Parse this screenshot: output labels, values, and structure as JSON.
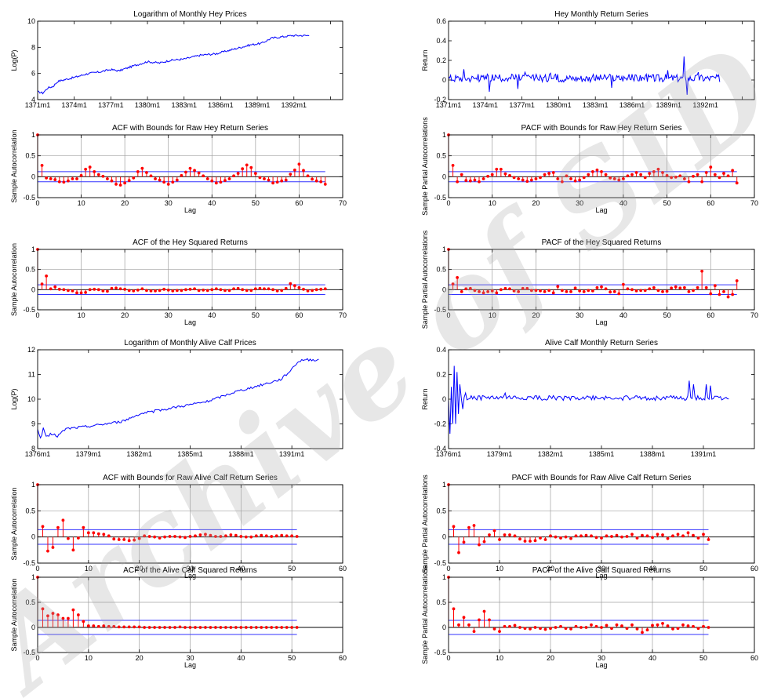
{
  "watermark": {
    "text": "Archive of SID"
  },
  "colors": {
    "line": "#0000ff",
    "stem": "#ff0000",
    "bound": "#3333ff",
    "axis": "#000000",
    "grid": "#a0a0a0"
  },
  "chart_data": [
    {
      "id": "hey-log-prices",
      "type": "line",
      "title": "Logarithm of Monthly Hey Prices",
      "ylabel": "Log(P)",
      "xlabel": "",
      "xlim": [
        0,
        300
      ],
      "ylim": [
        4,
        10
      ],
      "yticks": [
        4,
        6,
        8,
        10
      ],
      "xticks": [
        {
          "x": 0,
          "label": "1371m1"
        },
        {
          "x": 36,
          "label": "1374m1"
        },
        {
          "x": 72,
          "label": "1377m1"
        },
        {
          "x": 108,
          "label": "1380m1"
        },
        {
          "x": 144,
          "label": "1383m1"
        },
        {
          "x": 180,
          "label": "1386m1"
        },
        {
          "x": 216,
          "label": "1389m1"
        },
        {
          "x": 252,
          "label": "1392m1"
        },
        {
          "x": 288,
          "label": ""
        }
      ],
      "grid": false,
      "n": 268,
      "anchors": [
        [
          0,
          4.6
        ],
        [
          5,
          4.5
        ],
        [
          10,
          4.9
        ],
        [
          15,
          5.0
        ],
        [
          20,
          5.4
        ],
        [
          36,
          5.7
        ],
        [
          50,
          6.0
        ],
        [
          60,
          6.1
        ],
        [
          72,
          6.3
        ],
        [
          80,
          6.2
        ],
        [
          95,
          6.6
        ],
        [
          108,
          6.9
        ],
        [
          120,
          6.8
        ],
        [
          130,
          7.0
        ],
        [
          144,
          7.1
        ],
        [
          160,
          7.4
        ],
        [
          175,
          7.5
        ],
        [
          180,
          7.6
        ],
        [
          195,
          7.9
        ],
        [
          210,
          8.2
        ],
        [
          220,
          8.3
        ],
        [
          230,
          8.7
        ],
        [
          240,
          8.8
        ],
        [
          250,
          8.9
        ]
      ]
    },
    {
      "id": "hey-returns",
      "type": "line",
      "title": "Hey Monthly Return Series",
      "ylabel": "Return",
      "xlabel": "",
      "xlim": [
        0,
        300
      ],
      "ylim": [
        -0.2,
        0.6
      ],
      "yticks": [
        -0.2,
        0,
        0.2,
        0.4,
        0.6
      ],
      "xticks": [
        {
          "x": 0,
          "label": "1371m1"
        },
        {
          "x": 36,
          "label": "1374m1"
        },
        {
          "x": 72,
          "label": "1377m1"
        },
        {
          "x": 108,
          "label": "1380m1"
        },
        {
          "x": 144,
          "label": "1383m1"
        },
        {
          "x": 180,
          "label": "1386m1"
        },
        {
          "x": 216,
          "label": "1389m1"
        },
        {
          "x": 252,
          "label": "1392m1"
        },
        {
          "x": 288,
          "label": ""
        }
      ],
      "grid": false,
      "n": 267,
      "amp": 0.04,
      "center": 0.02,
      "spikes": [
        [
          15,
          0.11
        ],
        [
          40,
          -0.12
        ],
        [
          68,
          -0.09
        ],
        [
          75,
          0.08
        ],
        [
          100,
          0.07
        ],
        [
          160,
          -0.08
        ],
        [
          215,
          0.1
        ],
        [
          231,
          0.24
        ],
        [
          234,
          -0.15
        ],
        [
          245,
          0.08
        ]
      ]
    },
    {
      "id": "hey-acf",
      "type": "stem",
      "title": "ACF with Bounds for Raw Hey Return Series",
      "ylabel": "Sample Autocorrelation",
      "xlabel": "Lag",
      "xlim": [
        0,
        70
      ],
      "ylim": [
        -0.5,
        1
      ],
      "yticks": [
        -0.5,
        0,
        0.5,
        1
      ],
      "xticks": [
        0,
        10,
        20,
        30,
        40,
        50,
        60,
        70
      ],
      "grid": true,
      "bounds": 0.12,
      "values": [
        1,
        0.27,
        -0.03,
        -0.05,
        -0.07,
        -0.12,
        -0.13,
        -0.1,
        -0.05,
        -0.05,
        0.03,
        0.18,
        0.23,
        0.12,
        0.05,
        0.01,
        -0.05,
        -0.1,
        -0.18,
        -0.2,
        -0.15,
        -0.09,
        -0.03,
        0.12,
        0.2,
        0.1,
        0.02,
        -0.05,
        -0.08,
        -0.13,
        -0.18,
        -0.13,
        -0.08,
        0.03,
        0.11,
        0.2,
        0.15,
        0.09,
        0.02,
        -0.05,
        -0.1,
        -0.15,
        -0.13,
        -0.09,
        -0.05,
        0.02,
        0.08,
        0.19,
        0.28,
        0.22,
        0.08,
        -0.02,
        -0.05,
        -0.08,
        -0.15,
        -0.13,
        -0.1,
        -0.08,
        0.06,
        0.16,
        0.3,
        0.15,
        0.02,
        -0.06,
        -0.1,
        -0.12,
        -0.18
      ]
    },
    {
      "id": "hey-pacf",
      "type": "stem",
      "title": "PACF with Bounds for Raw Hey Return Series",
      "ylabel": "Sample Partial Autocorrelations",
      "xlabel": "Lag",
      "xlim": [
        0,
        70
      ],
      "ylim": [
        -0.5,
        1
      ],
      "yticks": [
        -0.5,
        0,
        0.5,
        1
      ],
      "xticks": [
        0,
        10,
        20,
        30,
        40,
        50,
        60,
        70
      ],
      "grid": true,
      "bounds": 0.12,
      "values": [
        1,
        0.27,
        -0.12,
        0.05,
        -0.09,
        -0.1,
        -0.08,
        -0.12,
        -0.05,
        0.01,
        0.05,
        0.18,
        0.18,
        0.07,
        0.03,
        -0.02,
        -0.05,
        -0.08,
        -0.11,
        -0.08,
        -0.05,
        -0.02,
        0.05,
        0.08,
        0.1,
        -0.05,
        -0.12,
        0.02,
        -0.05,
        -0.1,
        -0.08,
        -0.02,
        0.05,
        0.12,
        0.16,
        0.12,
        0.05,
        -0.03,
        -0.05,
        -0.08,
        -0.05,
        0.02,
        0.05,
        0.1,
        0.05,
        -0.02,
        0.08,
        0.12,
        0.18,
        0.1,
        0.03,
        -0.02,
        -0.01,
        0.02,
        -0.05,
        -0.12,
        0.01,
        0.05,
        -0.12,
        0.1,
        0.23,
        0.05,
        -0.02,
        0.08,
        0.02,
        0.15,
        -0.15
      ]
    },
    {
      "id": "hey-sq-acf",
      "type": "stem",
      "title": "ACF of the Hey Squared Returns",
      "ylabel": "Sample Autocorrelation",
      "xlabel": "Lag",
      "xlim": [
        0,
        70
      ],
      "ylim": [
        -0.5,
        1
      ],
      "yticks": [
        -0.5,
        0,
        0.5,
        1
      ],
      "xticks": [
        0,
        10,
        20,
        30,
        40,
        50,
        60,
        70
      ],
      "grid": true,
      "bounds": 0.12,
      "values": [
        1,
        0.14,
        0.34,
        0.02,
        0.07,
        0.01,
        0.0,
        -0.02,
        -0.03,
        -0.08,
        -0.08,
        -0.07,
        0.0,
        0.01,
        0.0,
        -0.03,
        -0.04,
        0.03,
        0.04,
        0.02,
        0.01,
        -0.02,
        -0.03,
        -0.01,
        0.02,
        -0.02,
        -0.03,
        -0.03,
        -0.02,
        0.01,
        -0.01,
        -0.03,
        -0.02,
        -0.02,
        0.0,
        0.01,
        0.02,
        -0.02,
        -0.01,
        -0.02,
        0.0,
        0.02,
        0.0,
        -0.02,
        -0.02,
        0.02,
        0.03,
        0.0,
        -0.02,
        -0.02,
        0.02,
        0.03,
        0.02,
        0.02,
        0.0,
        -0.03,
        -0.02,
        0.03,
        0.15,
        0.1,
        0.05,
        0.01,
        -0.03,
        -0.02,
        0.0,
        0.01,
        0.02
      ]
    },
    {
      "id": "hey-sq-pacf",
      "type": "stem",
      "title": "PACF of the Hey Squared Returns",
      "ylabel": "Sample Partial Autocorrelations",
      "xlabel": "Lag",
      "xlim": [
        0,
        70
      ],
      "ylim": [
        -0.5,
        1
      ],
      "yticks": [
        -0.5,
        0,
        0.5,
        1
      ],
      "xticks": [
        0,
        10,
        20,
        30,
        40,
        50,
        60,
        70
      ],
      "grid": true,
      "bounds": 0.12,
      "values": [
        1,
        0.14,
        0.3,
        -0.05,
        0.02,
        0.03,
        -0.02,
        -0.05,
        -0.08,
        -0.05,
        -0.03,
        -0.08,
        0.0,
        0.03,
        0.02,
        -0.03,
        -0.05,
        0.03,
        0.03,
        -0.02,
        -0.02,
        -0.03,
        -0.05,
        -0.02,
        -0.08,
        0.08,
        -0.02,
        -0.05,
        -0.05,
        0.04,
        -0.03,
        -0.05,
        -0.02,
        -0.03,
        0.05,
        0.07,
        0.02,
        -0.06,
        -0.05,
        -0.1,
        0.13,
        0.02,
        0.0,
        -0.03,
        -0.02,
        -0.02,
        0.02,
        0.05,
        -0.02,
        -0.05,
        -0.04,
        0.04,
        0.07,
        0.04,
        0.05,
        -0.05,
        -0.02,
        0.05,
        0.46,
        0.05,
        -0.1,
        0.1,
        -0.12,
        -0.05,
        -0.18,
        -0.12,
        0.22
      ]
    },
    {
      "id": "calf-log-prices",
      "type": "line",
      "title": "Logarithm of Monthly Alive Calf Prices",
      "ylabel": "Log(P)",
      "xlabel": "",
      "xlim": [
        0,
        216
      ],
      "ylim": [
        8,
        12
      ],
      "yticks": [
        8,
        9,
        10,
        11,
        12
      ],
      "xticks": [
        {
          "x": 0,
          "label": "1376m1"
        },
        {
          "x": 36,
          "label": "1379m1"
        },
        {
          "x": 72,
          "label": "1382m1"
        },
        {
          "x": 108,
          "label": "1385m1"
        },
        {
          "x": 144,
          "label": "1388m1"
        },
        {
          "x": 180,
          "label": "1391m1"
        }
      ],
      "grid": false,
      "n": 200,
      "anchors": [
        [
          0,
          8.8
        ],
        [
          2,
          8.4
        ],
        [
          4,
          8.8
        ],
        [
          6,
          8.5
        ],
        [
          10,
          8.6
        ],
        [
          14,
          8.5
        ],
        [
          20,
          8.8
        ],
        [
          36,
          8.9
        ],
        [
          60,
          9.1
        ],
        [
          72,
          9.4
        ],
        [
          100,
          9.7
        ],
        [
          120,
          9.9
        ],
        [
          140,
          10.3
        ],
        [
          160,
          10.6
        ],
        [
          172,
          10.8
        ],
        [
          178,
          11.1
        ],
        [
          184,
          11.5
        ],
        [
          188,
          11.6
        ],
        [
          198,
          11.6
        ]
      ]
    },
    {
      "id": "calf-returns",
      "type": "line",
      "title": "Alive Calf Monthly Return Series",
      "ylabel": "Return",
      "xlabel": "",
      "xlim": [
        0,
        216
      ],
      "ylim": [
        -0.4,
        0.4
      ],
      "yticks": [
        -0.4,
        -0.2,
        0,
        0.2,
        0.4
      ],
      "xticks": [
        {
          "x": 0,
          "label": "1376m1"
        },
        {
          "x": 36,
          "label": "1379m1"
        },
        {
          "x": 72,
          "label": "1382m1"
        },
        {
          "x": 108,
          "label": "1385m1"
        },
        {
          "x": 144,
          "label": "1388m1"
        },
        {
          "x": 180,
          "label": "1391m1"
        }
      ],
      "grid": false,
      "n": 199,
      "amp": 0.02,
      "center": 0.01,
      "spikes": [
        [
          1,
          -0.28
        ],
        [
          2,
          0.1
        ],
        [
          3,
          -0.2
        ],
        [
          4,
          0.27
        ],
        [
          5,
          -0.2
        ],
        [
          6,
          0.22
        ],
        [
          7,
          -0.12
        ],
        [
          8,
          0.12
        ],
        [
          10,
          -0.08
        ],
        [
          12,
          0.05
        ],
        [
          40,
          0.05
        ],
        [
          170,
          0.15
        ],
        [
          173,
          0.12
        ],
        [
          182,
          0.12
        ],
        [
          185,
          0.11
        ]
      ]
    },
    {
      "id": "calf-acf",
      "type": "stem",
      "title": "ACF with Bounds for Raw Alive Calf Return Series",
      "ylabel": "Sample Autocorrelation",
      "xlabel": "Lag",
      "xlim": [
        0,
        60
      ],
      "ylim": [
        -0.5,
        1
      ],
      "yticks": [
        -0.5,
        0,
        0.5,
        1
      ],
      "xticks": [
        0,
        10,
        20,
        30,
        40,
        50,
        60
      ],
      "grid": true,
      "bounds": 0.14,
      "values": [
        1,
        0.2,
        -0.27,
        -0.2,
        0.18,
        0.32,
        -0.03,
        -0.25,
        -0.02,
        0.18,
        0.08,
        0.08,
        0.06,
        0.05,
        0.02,
        -0.04,
        -0.05,
        -0.05,
        -0.07,
        -0.06,
        -0.03,
        0.02,
        0.01,
        0.0,
        -0.02,
        0.0,
        0.01,
        0.01,
        0.0,
        -0.01,
        0.01,
        0.02,
        0.04,
        0.05,
        0.03,
        0.01,
        0.01,
        0.02,
        0.04,
        0.03,
        0.01,
        0.0,
        0.0,
        0.02,
        0.03,
        0.02,
        0.01,
        0.02,
        0.03,
        0.02,
        0.02,
        0.01
      ]
    },
    {
      "id": "calf-pacf",
      "type": "stem",
      "title": "PACF with Bounds for Raw Alive Calf Return Series",
      "ylabel": "Sample Partial Autocorrelations",
      "xlabel": "Lag",
      "xlim": [
        0,
        60
      ],
      "ylim": [
        -0.5,
        1
      ],
      "yticks": [
        -0.5,
        0,
        0.5,
        1
      ],
      "xticks": [
        0,
        10,
        20,
        30,
        40,
        50,
        60
      ],
      "grid": true,
      "bounds": 0.14,
      "values": [
        1,
        0.2,
        -0.3,
        -0.1,
        0.18,
        0.22,
        -0.15,
        -0.09,
        0.04,
        0.12,
        -0.05,
        0.04,
        0.04,
        0.02,
        -0.04,
        -0.08,
        -0.08,
        -0.07,
        -0.02,
        -0.05,
        0.02,
        0.0,
        -0.02,
        0.0,
        -0.03,
        0.02,
        0.02,
        0.03,
        0.02,
        -0.01,
        -0.02,
        0.02,
        0.01,
        0.03,
        0.0,
        0.01,
        0.05,
        -0.02,
        0.03,
        0.02,
        -0.01,
        0.05,
        0.04,
        -0.03,
        0.02,
        0.05,
        0.02,
        0.08,
        0.03,
        -0.02,
        0.05,
        -0.05
      ]
    },
    {
      "id": "calf-sq-acf",
      "type": "stem",
      "title": "ACF of the Alive Calf Squared Returns",
      "ylabel": "Sample Autocorrelation",
      "xlabel": "Lag",
      "xlim": [
        0,
        60
      ],
      "ylim": [
        -0.5,
        1
      ],
      "yticks": [
        -0.5,
        0,
        0.5,
        1
      ],
      "xticks": [
        0,
        10,
        20,
        30,
        40,
        50,
        60
      ],
      "grid": true,
      "bounds": 0.14,
      "values": [
        1,
        0.37,
        0.23,
        0.28,
        0.25,
        0.18,
        0.18,
        0.35,
        0.25,
        0.12,
        0.03,
        0.03,
        0.02,
        0.03,
        0.02,
        0.02,
        0.01,
        0.01,
        0.01,
        0.01,
        0.01,
        0.0,
        0.0,
        0.0,
        0.0,
        0.0,
        0.0,
        0.0,
        0.01,
        0.0,
        0.0,
        0.0,
        0.0,
        0.0,
        0.0,
        0.0,
        0.0,
        0.0,
        0.0,
        0.0,
        0.0,
        0.0,
        0.0,
        0.0,
        0.0,
        0.0,
        0.0,
        0.0,
        0.0,
        0.0,
        0.0,
        0.0
      ]
    },
    {
      "id": "calf-sq-pacf",
      "type": "stem",
      "title": "PACF of the Alive Calf Squared Returns",
      "ylabel": "Sample Partial Autocorrelations",
      "xlabel": "Lag",
      "xlim": [
        0,
        60
      ],
      "ylim": [
        -0.5,
        1
      ],
      "yticks": [
        -0.5,
        0,
        0.5,
        1
      ],
      "xticks": [
        0,
        10,
        20,
        30,
        40,
        50,
        60
      ],
      "grid": true,
      "bounds": 0.14,
      "values": [
        1,
        0.37,
        0.05,
        0.2,
        0.05,
        -0.08,
        0.15,
        0.32,
        0.15,
        -0.03,
        -0.08,
        0.02,
        0.02,
        0.04,
        0.0,
        -0.02,
        -0.03,
        0.0,
        -0.02,
        -0.04,
        -0.02,
        0.0,
        0.02,
        -0.02,
        -0.03,
        0.02,
        0.0,
        0.0,
        0.05,
        0.02,
        0.0,
        0.04,
        -0.02,
        0.05,
        0.03,
        -0.02,
        0.05,
        -0.03,
        -0.1,
        -0.05,
        0.04,
        0.05,
        0.08,
        0.03,
        -0.03,
        -0.02,
        0.05,
        0.03,
        0.02,
        -0.02,
        0.02,
        0.0
      ]
    }
  ]
}
